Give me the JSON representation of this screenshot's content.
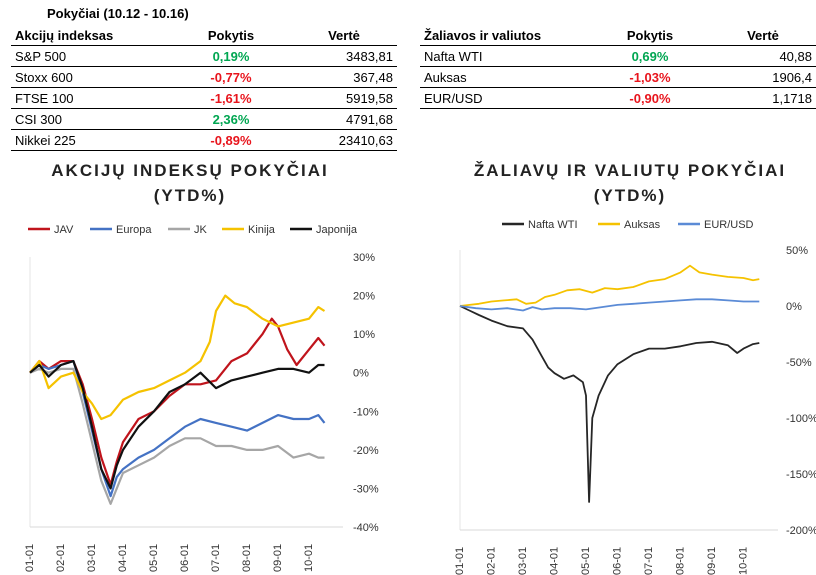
{
  "tables": {
    "title": "Pokyčiai (10.12 - 10.16)",
    "indices": {
      "headers": [
        "Akcijų indeksas",
        "Pokytis",
        "Vertė"
      ],
      "rows": [
        {
          "name": "S&P 500",
          "change": "0,19%",
          "value": "3483,81",
          "sign": "pos"
        },
        {
          "name": "Stoxx 600",
          "change": "-0,77%",
          "value": "367,48",
          "sign": "neg"
        },
        {
          "name": "FTSE 100",
          "change": "-1,61%",
          "value": "5919,58",
          "sign": "neg"
        },
        {
          "name": "CSI 300",
          "change": "2,36%",
          "value": "4791,68",
          "sign": "pos"
        },
        {
          "name": "Nikkei 225",
          "change": "-0,89%",
          "value": "23410,63",
          "sign": "neg"
        }
      ]
    },
    "commodities": {
      "headers": [
        "Žaliavos ir valiutos",
        "Pokytis",
        "Vertė"
      ],
      "rows": [
        {
          "name": "Nafta WTI",
          "change": "0,69%",
          "value": "40,88",
          "sign": "pos"
        },
        {
          "name": "Auksas",
          "change": "-1,03%",
          "value": "1906,4",
          "sign": "neg"
        },
        {
          "name": "EUR/USD",
          "change": "-0,90%",
          "value": "1,1718",
          "sign": "neg"
        }
      ]
    }
  },
  "colors": {
    "positive": "#00a651",
    "negative": "#e8141c",
    "JAV": "#c0141c",
    "Europa": "#4472c4",
    "JK": "#a6a6a6",
    "Kinija": "#f5c200",
    "Japonija": "#111111",
    "Nafta WTI": "#262626",
    "Auksas": "#f5c200",
    "EUR/USD": "#5b8bd6"
  },
  "chart_data": [
    {
      "type": "line",
      "title_line1": "AKCIJŲ INDEKSŲ POKYČIAI",
      "title_line2": "(YTD%)",
      "x": [
        "01-01",
        "02-01",
        "03-01",
        "04-01",
        "05-01",
        "06-01",
        "07-01",
        "08-01",
        "09-01",
        "10-01"
      ],
      "ylim": [
        -40,
        30
      ],
      "yticks": [
        30,
        20,
        10,
        0,
        -10,
        -20,
        -30,
        -40
      ],
      "ytick_labels": [
        "30%",
        "20%",
        "10%",
        "0%",
        "-10%",
        "-20%",
        "-30%",
        "-40%"
      ],
      "y_axis_side": "right",
      "legend_position": "top",
      "grid": false,
      "series": [
        {
          "name": "JAV",
          "points": [
            [
              0,
              0
            ],
            [
              0.3,
              3
            ],
            [
              0.6,
              1
            ],
            [
              1,
              3
            ],
            [
              1.4,
              3
            ],
            [
              1.7,
              -3
            ],
            [
              2,
              -12
            ],
            [
              2.3,
              -22
            ],
            [
              2.6,
              -29
            ],
            [
              2.8,
              -23
            ],
            [
              3,
              -18
            ],
            [
              3.5,
              -12
            ],
            [
              4,
              -10
            ],
            [
              4.5,
              -6
            ],
            [
              5,
              -3
            ],
            [
              5.5,
              -3
            ],
            [
              6,
              -2
            ],
            [
              6.5,
              3
            ],
            [
              7,
              5
            ],
            [
              7.5,
              10
            ],
            [
              7.8,
              14
            ],
            [
              8,
              12
            ],
            [
              8.3,
              6
            ],
            [
              8.6,
              2
            ],
            [
              9,
              6
            ],
            [
              9.3,
              9
            ],
            [
              9.5,
              7
            ]
          ]
        },
        {
          "name": "Europa",
          "points": [
            [
              0,
              0
            ],
            [
              0.3,
              2
            ],
            [
              0.6,
              1
            ],
            [
              1,
              2
            ],
            [
              1.4,
              3
            ],
            [
              1.7,
              -5
            ],
            [
              2,
              -15
            ],
            [
              2.3,
              -25
            ],
            [
              2.6,
              -32
            ],
            [
              2.8,
              -27
            ],
            [
              3,
              -25
            ],
            [
              3.5,
              -22
            ],
            [
              4,
              -20
            ],
            [
              4.5,
              -17
            ],
            [
              5,
              -14
            ],
            [
              5.5,
              -12
            ],
            [
              6,
              -13
            ],
            [
              6.5,
              -14
            ],
            [
              7,
              -15
            ],
            [
              7.5,
              -13
            ],
            [
              8,
              -11
            ],
            [
              8.5,
              -12
            ],
            [
              9,
              -12
            ],
            [
              9.3,
              -11
            ],
            [
              9.5,
              -13
            ]
          ]
        },
        {
          "name": "JK",
          "points": [
            [
              0,
              0
            ],
            [
              0.3,
              1
            ],
            [
              0.6,
              0
            ],
            [
              1,
              1
            ],
            [
              1.4,
              1
            ],
            [
              1.7,
              -8
            ],
            [
              2,
              -18
            ],
            [
              2.3,
              -28
            ],
            [
              2.6,
              -34
            ],
            [
              2.8,
              -30
            ],
            [
              3,
              -26
            ],
            [
              3.5,
              -24
            ],
            [
              4,
              -22
            ],
            [
              4.5,
              -19
            ],
            [
              5,
              -17
            ],
            [
              5.5,
              -17
            ],
            [
              6,
              -19
            ],
            [
              6.5,
              -19
            ],
            [
              7,
              -20
            ],
            [
              7.5,
              -20
            ],
            [
              8,
              -19
            ],
            [
              8.5,
              -22
            ],
            [
              9,
              -21
            ],
            [
              9.3,
              -22
            ],
            [
              9.5,
              -22
            ]
          ]
        },
        {
          "name": "Kinija",
          "points": [
            [
              0,
              0
            ],
            [
              0.3,
              3
            ],
            [
              0.6,
              -4
            ],
            [
              1,
              -1
            ],
            [
              1.4,
              0
            ],
            [
              1.7,
              -5
            ],
            [
              2,
              -8
            ],
            [
              2.3,
              -12
            ],
            [
              2.6,
              -11
            ],
            [
              2.8,
              -9
            ],
            [
              3,
              -7
            ],
            [
              3.5,
              -5
            ],
            [
              4,
              -4
            ],
            [
              4.5,
              -2
            ],
            [
              5,
              0
            ],
            [
              5.5,
              3
            ],
            [
              5.8,
              8
            ],
            [
              6,
              16
            ],
            [
              6.3,
              20
            ],
            [
              6.6,
              18
            ],
            [
              7,
              17
            ],
            [
              7.5,
              14
            ],
            [
              8,
              12
            ],
            [
              8.5,
              13
            ],
            [
              9,
              14
            ],
            [
              9.3,
              17
            ],
            [
              9.5,
              16
            ]
          ]
        },
        {
          "name": "Japonija",
          "points": [
            [
              0,
              0
            ],
            [
              0.3,
              2
            ],
            [
              0.6,
              -1
            ],
            [
              1,
              2
            ],
            [
              1.4,
              3
            ],
            [
              1.7,
              -4
            ],
            [
              2,
              -14
            ],
            [
              2.3,
              -25
            ],
            [
              2.6,
              -30
            ],
            [
              2.8,
              -24
            ],
            [
              3,
              -20
            ],
            [
              3.5,
              -14
            ],
            [
              4,
              -10
            ],
            [
              4.5,
              -5
            ],
            [
              5,
              -3
            ],
            [
              5.5,
              0
            ],
            [
              6,
              -4
            ],
            [
              6.5,
              -2
            ],
            [
              7,
              -1
            ],
            [
              7.5,
              0
            ],
            [
              8,
              1
            ],
            [
              8.5,
              1
            ],
            [
              9,
              0
            ],
            [
              9.3,
              2
            ],
            [
              9.5,
              2
            ]
          ]
        }
      ]
    },
    {
      "type": "line",
      "title_line1": "ŽALIAVŲ IR VALIUTŲ POKYČIAI",
      "title_line2": "(YTD%)",
      "x": [
        "01-01",
        "02-01",
        "03-01",
        "04-01",
        "05-01",
        "06-01",
        "07-01",
        "08-01",
        "09-01",
        "10-01"
      ],
      "ylim": [
        -200,
        50
      ],
      "yticks": [
        50,
        0,
        -50,
        -100,
        -150,
        -200
      ],
      "ytick_labels": [
        "50%",
        "0%",
        "-50%",
        "-100%",
        "-150%",
        "-200%"
      ],
      "y_axis_side": "right",
      "legend_position": "top",
      "grid": false,
      "series": [
        {
          "name": "Nafta WTI",
          "points": [
            [
              0,
              0
            ],
            [
              0.3,
              -4
            ],
            [
              0.6,
              -8
            ],
            [
              1,
              -13
            ],
            [
              1.5,
              -18
            ],
            [
              2,
              -20
            ],
            [
              2.3,
              -30
            ],
            [
              2.6,
              -45
            ],
            [
              2.8,
              -55
            ],
            [
              3,
              -60
            ],
            [
              3.3,
              -65
            ],
            [
              3.6,
              -62
            ],
            [
              3.9,
              -68
            ],
            [
              4,
              -80
            ],
            [
              4.1,
              -175
            ],
            [
              4.2,
              -100
            ],
            [
              4.4,
              -80
            ],
            [
              4.7,
              -62
            ],
            [
              5,
              -52
            ],
            [
              5.5,
              -43
            ],
            [
              6,
              -38
            ],
            [
              6.5,
              -38
            ],
            [
              7,
              -36
            ],
            [
              7.5,
              -33
            ],
            [
              8,
              -32
            ],
            [
              8.5,
              -35
            ],
            [
              8.8,
              -42
            ],
            [
              9,
              -38
            ],
            [
              9.3,
              -34
            ],
            [
              9.5,
              -33
            ]
          ]
        },
        {
          "name": "Auksas",
          "points": [
            [
              0,
              0
            ],
            [
              0.3,
              1
            ],
            [
              0.6,
              2
            ],
            [
              1,
              4
            ],
            [
              1.4,
              5
            ],
            [
              1.8,
              6
            ],
            [
              2.1,
              2
            ],
            [
              2.4,
              3
            ],
            [
              2.7,
              8
            ],
            [
              3,
              10
            ],
            [
              3.4,
              14
            ],
            [
              3.8,
              15
            ],
            [
              4.2,
              12
            ],
            [
              4.6,
              16
            ],
            [
              5,
              15
            ],
            [
              5.5,
              17
            ],
            [
              6,
              22
            ],
            [
              6.5,
              24
            ],
            [
              7,
              30
            ],
            [
              7.3,
              36
            ],
            [
              7.6,
              30
            ],
            [
              8,
              28
            ],
            [
              8.5,
              26
            ],
            [
              9,
              25
            ],
            [
              9.3,
              23
            ],
            [
              9.5,
              24
            ]
          ]
        },
        {
          "name": "EUR/USD",
          "points": [
            [
              0,
              0
            ],
            [
              0.5,
              -2
            ],
            [
              1,
              -3
            ],
            [
              1.5,
              -2
            ],
            [
              2,
              -4
            ],
            [
              2.3,
              -1
            ],
            [
              2.6,
              -3
            ],
            [
              3,
              -2
            ],
            [
              3.5,
              -2
            ],
            [
              4,
              -3
            ],
            [
              4.5,
              -1
            ],
            [
              5,
              1
            ],
            [
              5.5,
              2
            ],
            [
              6,
              3
            ],
            [
              6.5,
              4
            ],
            [
              7,
              5
            ],
            [
              7.5,
              6
            ],
            [
              8,
              6
            ],
            [
              8.5,
              5
            ],
            [
              9,
              4
            ],
            [
              9.5,
              4
            ]
          ]
        }
      ]
    }
  ]
}
